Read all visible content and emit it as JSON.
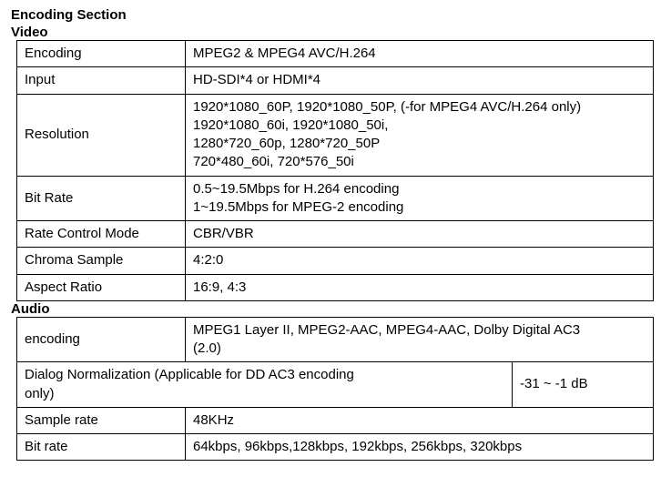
{
  "title": "Encoding Section",
  "video": {
    "header": "Video",
    "rows": {
      "encoding": {
        "label": "Encoding",
        "value": "MPEG2 & MPEG4 AVC/H.264"
      },
      "input": {
        "label": "Input",
        "value": "HD-SDI*4 or HDMI*4"
      },
      "resolution": {
        "label": "Resolution",
        "line1": "1920*1080_60P, 1920*1080_50P, (-for MPEG4 AVC/H.264 only)",
        "line2": "1920*1080_60i, 1920*1080_50i,",
        "line3": "1280*720_60p, 1280*720_50P",
        "line4": "720*480_60i, 720*576_50i"
      },
      "bitrate": {
        "label": "Bit Rate",
        "line1": "0.5~19.5Mbps for H.264 encoding",
        "line2": "1~19.5Mbps for MPEG-2 encoding"
      },
      "ratecontrol": {
        "label": "Rate Control Mode",
        "value": "CBR/VBR"
      },
      "chroma": {
        "label": "Chroma Sample",
        "value": "4:2:0"
      },
      "aspect": {
        "label": "Aspect Ratio",
        "value": "16:9, 4:3"
      }
    }
  },
  "audio": {
    "header": "Audio",
    "rows": {
      "encoding": {
        "label": "encoding",
        "line1": "MPEG1 Layer II, MPEG2-AAC, MPEG4-AAC, Dolby Digital AC3",
        "line2": "(2.0)"
      },
      "dialog": {
        "label_line1": "Dialog Normalization (Applicable for DD AC3 encoding",
        "label_line2": "only)",
        "value": "-31 ~ -1 dB"
      },
      "samplerate": {
        "label": "Sample rate",
        "value": "48KHz"
      },
      "bitrate": {
        "label": "Bit rate",
        "value": " 64kbps, 96kbps,128kbps, 192kbps, 256kbps, 320kbps"
      }
    }
  }
}
